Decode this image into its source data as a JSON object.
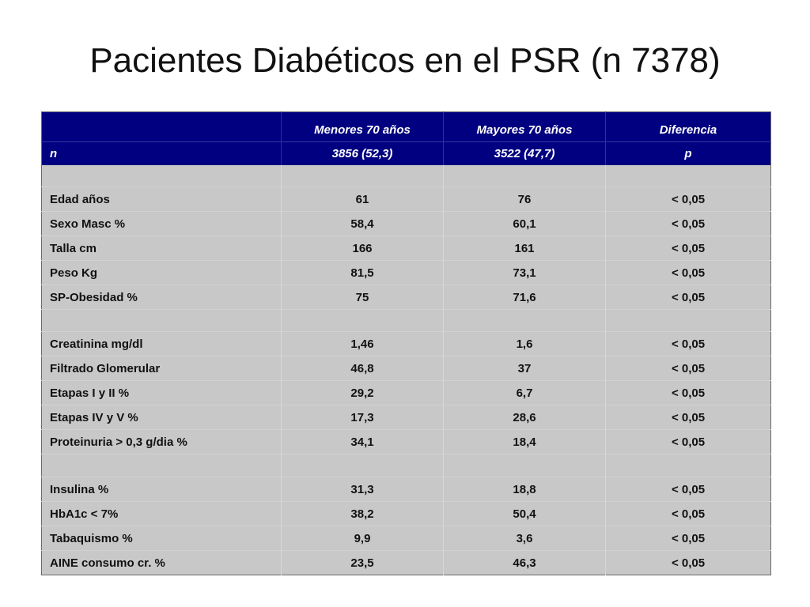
{
  "title": "Pacientes Diabéticos en el PSR (n 7378)",
  "table": {
    "header": {
      "columns": [
        "",
        "Menores 70 años",
        "Mayores 70 años",
        "Diferencia"
      ],
      "n_row": [
        "n",
        "3856 (52,3)",
        "3522 (47,7)",
        "p"
      ]
    },
    "groups": [
      [
        [
          "Edad años",
          "61",
          "76",
          "< 0,05"
        ],
        [
          "Sexo Masc %",
          "58,4",
          "60,1",
          "< 0,05"
        ],
        [
          "Talla cm",
          "166",
          "161",
          "< 0,05"
        ],
        [
          "Peso Kg",
          "81,5",
          "73,1",
          "< 0,05"
        ],
        [
          "SP-Obesidad %",
          "75",
          "71,6",
          "< 0,05"
        ]
      ],
      [
        [
          "Creatinina mg/dl",
          "1,46",
          "1,6",
          "< 0,05"
        ],
        [
          "Filtrado Glomerular",
          "46,8",
          "37",
          "< 0,05"
        ],
        [
          "Etapas I y II %",
          "29,2",
          "6,7",
          "< 0,05"
        ],
        [
          "Etapas IV y V %",
          "17,3",
          "28,6",
          "< 0,05"
        ],
        [
          "Proteinuria > 0,3 g/dia %",
          "34,1",
          "18,4",
          "< 0,05"
        ]
      ],
      [
        [
          "Insulina %",
          "31,3",
          "18,8",
          "< 0,05"
        ],
        [
          "HbA1c < 7%",
          "38,2",
          "50,4",
          "< 0,05"
        ],
        [
          "Tabaquismo %",
          "9,9",
          "3,6",
          "< 0,05"
        ],
        [
          "AINE consumo cr. %",
          "23,5",
          "46,3",
          "< 0,05"
        ]
      ]
    ]
  },
  "colors": {
    "header_bg": "#000080",
    "header_text": "#ffffff",
    "body_bg": "#c8c8c8",
    "body_text": "#111111"
  }
}
